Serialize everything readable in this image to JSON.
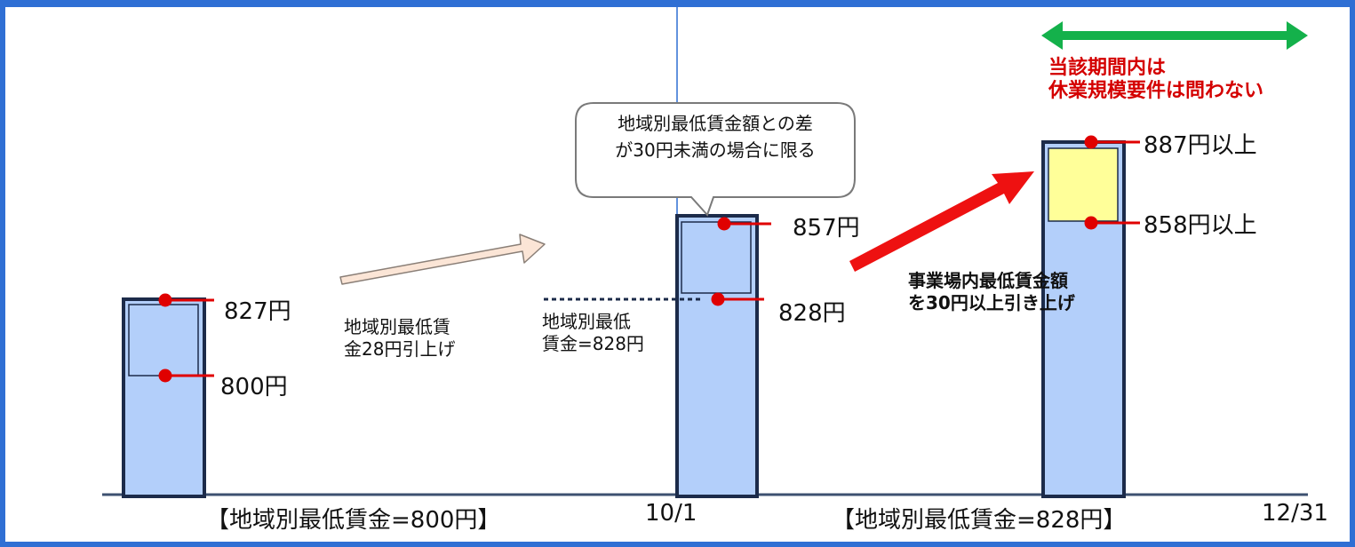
{
  "timeline": {
    "date_mid": "10/1",
    "date_end": "12/31",
    "period1_label": "【地域別最低賃金=800円】",
    "period2_label": "【地域別最低賃金=828円】"
  },
  "bar1": {
    "top_value": "827円",
    "bottom_value": "800円"
  },
  "arrow1": {
    "line1": "地域別最低賃",
    "line2": "金28円引上げ"
  },
  "bar2": {
    "top_value": "857円",
    "bottom_value": "828円",
    "note_line1": "地域別最低",
    "note_line2": "賃金=828円"
  },
  "callout": {
    "line1": "地域別最低賃金額との差",
    "line2": "が30円未満の場合に限る"
  },
  "arrow2": {
    "line1": "事業場内最低賃金額",
    "line2": "を30円以上引き上げ"
  },
  "bar3": {
    "top_value": "887円以上",
    "bottom_value": "858円以上"
  },
  "period_note": {
    "line1": "当該期間内は",
    "line2": "休業規模要件は問わない"
  },
  "colors": {
    "border": "#2f6fd4",
    "bar_fill": "#b3cffa",
    "bar_stroke": "#1c2b4a",
    "highlight_fill": "#ffff99",
    "marker": "#e00000",
    "green_arrow": "#14b14b",
    "red_arrow": "#ee1111",
    "peach_arrow": "#fbe5d6"
  }
}
